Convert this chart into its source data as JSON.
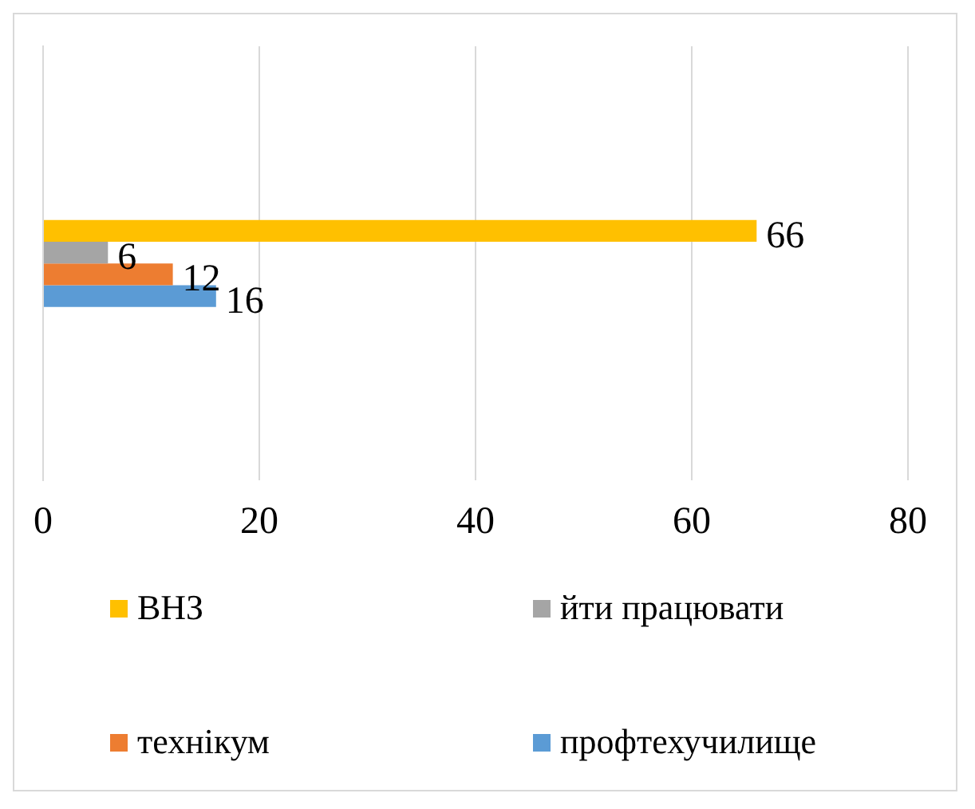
{
  "chart_data": {
    "type": "bar",
    "orientation": "horizontal",
    "categories": [
      null
    ],
    "series": [
      {
        "name": "ВНЗ",
        "color": "#ffc000",
        "values": [
          66
        ]
      },
      {
        "name": "йти працювати",
        "color": "#a5a5a5",
        "values": [
          6
        ]
      },
      {
        "name": "технікум",
        "color": "#ed7d31",
        "values": [
          12
        ]
      },
      {
        "name": "профтехучилище",
        "color": "#5b9bd5",
        "values": [
          16
        ]
      }
    ],
    "xlim": [
      0,
      80
    ],
    "xticks": [
      0,
      20,
      40,
      60,
      80
    ],
    "grid": "x",
    "legend": "bottom",
    "data_labels": true
  }
}
